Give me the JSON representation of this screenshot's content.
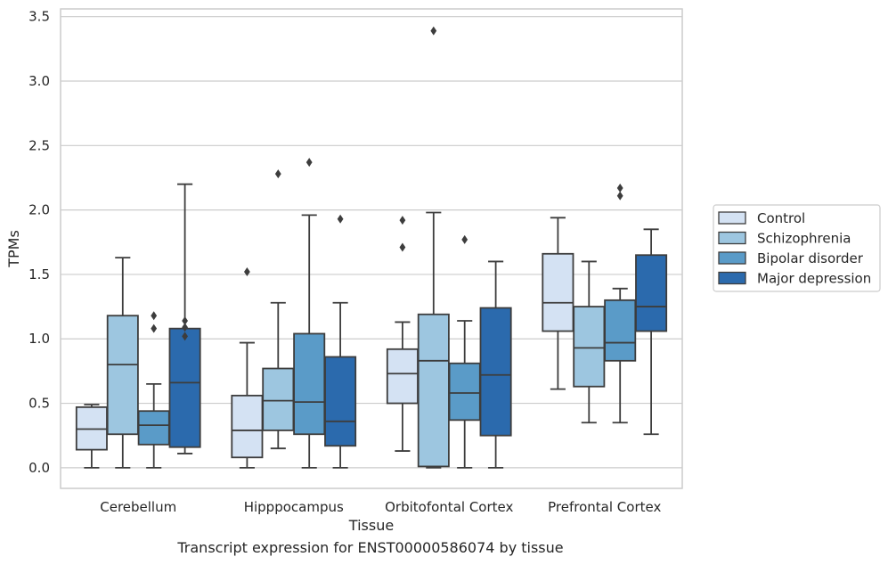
{
  "caption": "Transcript expression for ENST00000586074 by tissue",
  "chart_data": {
    "type": "box",
    "title": "",
    "xlabel": "Tissue",
    "ylabel": "TPMs",
    "ylim": [
      -0.16,
      3.56
    ],
    "yticks": [
      0.0,
      0.5,
      1.0,
      1.5,
      2.0,
      2.5,
      3.0,
      3.5
    ],
    "ytick_labels": [
      "0.0",
      "0.5",
      "1.0",
      "1.5",
      "2.0",
      "2.5",
      "3.0",
      "3.5"
    ],
    "grid": "horizontal",
    "legend_position": "right",
    "categories": [
      "Cerebellum",
      "Hipppocampus",
      "Orbitofontal Cortex",
      "Prefrontal Cortex"
    ],
    "series": [
      {
        "name": "Control",
        "color": "#d4e2f3",
        "boxes": [
          {
            "whislo": 0.0,
            "q1": 0.14,
            "med": 0.3,
            "q3": 0.47,
            "whishi": 0.49,
            "fliers": []
          },
          {
            "whislo": 0.0,
            "q1": 0.08,
            "med": 0.29,
            "q3": 0.56,
            "whishi": 0.97,
            "fliers": [
              1.52
            ]
          },
          {
            "whislo": 0.13,
            "q1": 0.5,
            "med": 0.73,
            "q3": 0.92,
            "whishi": 1.13,
            "fliers": [
              1.71,
              1.92
            ]
          },
          {
            "whislo": 0.61,
            "q1": 1.06,
            "med": 1.28,
            "q3": 1.66,
            "whishi": 1.94,
            "fliers": []
          }
        ]
      },
      {
        "name": "Schizophrenia",
        "color": "#9dc6e0",
        "boxes": [
          {
            "whislo": 0.0,
            "q1": 0.26,
            "med": 0.8,
            "q3": 1.18,
            "whishi": 1.63,
            "fliers": []
          },
          {
            "whislo": 0.15,
            "q1": 0.29,
            "med": 0.52,
            "q3": 0.77,
            "whishi": 1.28,
            "fliers": [
              2.28
            ]
          },
          {
            "whislo": 0.0,
            "q1": 0.01,
            "med": 0.83,
            "q3": 1.19,
            "whishi": 1.98,
            "fliers": [
              3.39
            ]
          },
          {
            "whislo": 0.35,
            "q1": 0.63,
            "med": 0.93,
            "q3": 1.25,
            "whishi": 1.6,
            "fliers": []
          }
        ]
      },
      {
        "name": "Bipolar disorder",
        "color": "#5a9bc8",
        "boxes": [
          {
            "whislo": 0.0,
            "q1": 0.18,
            "med": 0.33,
            "q3": 0.44,
            "whishi": 0.65,
            "fliers": [
              1.08,
              1.18
            ]
          },
          {
            "whislo": 0.0,
            "q1": 0.26,
            "med": 0.51,
            "q3": 1.04,
            "whishi": 1.96,
            "fliers": [
              2.37
            ]
          },
          {
            "whislo": 0.0,
            "q1": 0.37,
            "med": 0.58,
            "q3": 0.81,
            "whishi": 1.14,
            "fliers": [
              1.77
            ]
          },
          {
            "whislo": 0.35,
            "q1": 0.83,
            "med": 0.97,
            "q3": 1.3,
            "whishi": 1.39,
            "fliers": [
              2.11,
              2.17
            ]
          }
        ]
      },
      {
        "name": "Major depression",
        "color": "#2b6aad",
        "boxes": [
          {
            "whislo": 0.11,
            "q1": 0.16,
            "med": 0.66,
            "q3": 1.08,
            "whishi": 2.2,
            "fliers": [
              1.02,
              1.09,
              1.14
            ]
          },
          {
            "whislo": 0.0,
            "q1": 0.17,
            "med": 0.36,
            "q3": 0.86,
            "whishi": 1.28,
            "fliers": [
              1.93
            ]
          },
          {
            "whislo": 0.0,
            "q1": 0.25,
            "med": 0.72,
            "q3": 1.24,
            "whishi": 1.6,
            "fliers": []
          },
          {
            "whislo": 0.26,
            "q1": 1.06,
            "med": 1.25,
            "q3": 1.65,
            "whishi": 1.85,
            "fliers": []
          }
        ]
      }
    ]
  }
}
